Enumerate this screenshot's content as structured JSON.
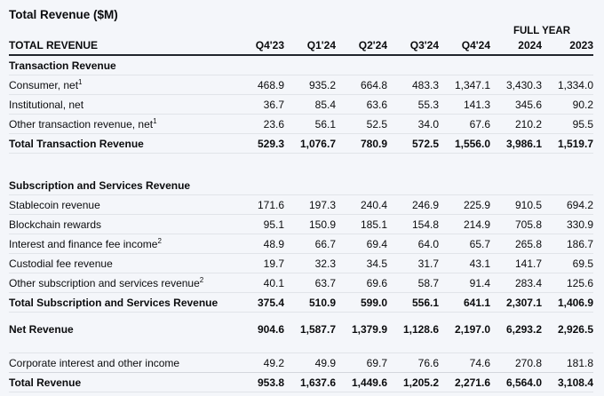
{
  "title": "Total Revenue ($M)",
  "table": {
    "full_year_label": "FULL YEAR",
    "header": {
      "label": "TOTAL REVENUE",
      "columns": [
        "Q4'23",
        "Q1'24",
        "Q2'24",
        "Q3'24",
        "Q4'24",
        "2024",
        "2023"
      ]
    },
    "rows": [
      {
        "type": "section",
        "label": "Transaction Revenue"
      },
      {
        "type": "data",
        "label": "Consumer, net",
        "sup": "1",
        "values": [
          "468.9",
          "935.2",
          "664.8",
          "483.3",
          "1,347.1",
          "3,430.3",
          "1,334.0"
        ]
      },
      {
        "type": "data",
        "label": "Institutional, net",
        "values": [
          "36.7",
          "85.4",
          "63.6",
          "55.3",
          "141.3",
          "345.6",
          "90.2"
        ]
      },
      {
        "type": "data",
        "label": "Other transaction revenue, net",
        "sup": "1",
        "values": [
          "23.6",
          "56.1",
          "52.5",
          "34.0",
          "67.6",
          "210.2",
          "95.5"
        ]
      },
      {
        "type": "total",
        "label": "Total Transaction Revenue",
        "values": [
          "529.3",
          "1,076.7",
          "780.9",
          "572.5",
          "1,556.0",
          "3,986.1",
          "1,519.7"
        ]
      },
      {
        "type": "section",
        "label": "Subscription and Services Revenue"
      },
      {
        "type": "data",
        "label": "Stablecoin revenue",
        "values": [
          "171.6",
          "197.3",
          "240.4",
          "246.9",
          "225.9",
          "910.5",
          "694.2"
        ]
      },
      {
        "type": "data",
        "label": "Blockchain rewards",
        "values": [
          "95.1",
          "150.9",
          "185.1",
          "154.8",
          "214.9",
          "705.8",
          "330.9"
        ]
      },
      {
        "type": "data",
        "label": "Interest and finance fee income",
        "sup": "2",
        "values": [
          "48.9",
          "66.7",
          "69.4",
          "64.0",
          "65.7",
          "265.8",
          "186.7"
        ]
      },
      {
        "type": "data",
        "label": "Custodial fee revenue",
        "values": [
          "19.7",
          "32.3",
          "34.5",
          "31.7",
          "43.1",
          "141.7",
          "69.5"
        ]
      },
      {
        "type": "data",
        "label": "Other subscription and services revenue",
        "sup": "2",
        "values": [
          "40.1",
          "63.7",
          "69.6",
          "58.7",
          "91.4",
          "283.4",
          "125.6"
        ]
      },
      {
        "type": "total",
        "label": "Total Subscription and Services Revenue",
        "values": [
          "375.4",
          "510.9",
          "599.0",
          "556.1",
          "641.1",
          "2,307.1",
          "1,406.9"
        ]
      },
      {
        "type": "total",
        "label": "Net Revenue",
        "values": [
          "904.6",
          "1,587.7",
          "1,379.9",
          "1,128.6",
          "2,197.0",
          "6,293.2",
          "2,926.5"
        ]
      },
      {
        "type": "data",
        "label": "Corporate interest and other income",
        "values": [
          "49.2",
          "49.9",
          "69.7",
          "76.6",
          "74.6",
          "270.8",
          "181.8"
        ]
      },
      {
        "type": "total",
        "label": "Total Revenue",
        "values": [
          "953.8",
          "1,637.6",
          "1,449.6",
          "1,205.2",
          "2,271.6",
          "6,564.0",
          "3,108.4"
        ]
      }
    ]
  }
}
